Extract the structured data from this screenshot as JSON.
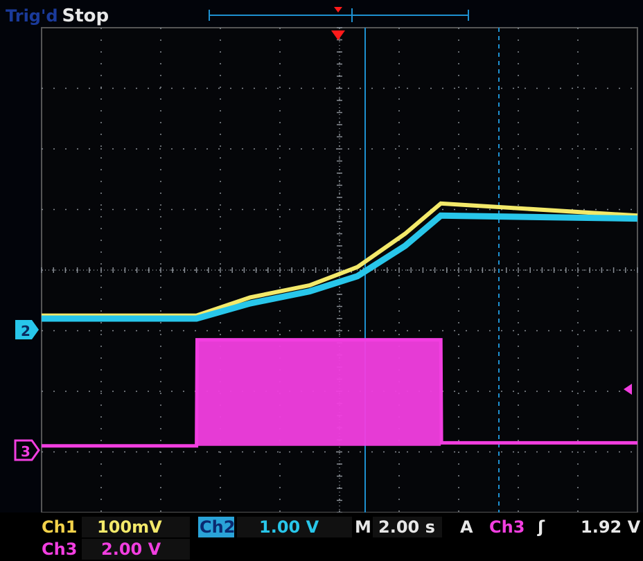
{
  "header": {
    "trigger_state": "Trig'd",
    "run_state": "Stop"
  },
  "markers": {
    "ch2": "2",
    "ch3": "3"
  },
  "status": {
    "ch1_label": "Ch1",
    "ch1_scale": "100mV",
    "ch2_label": "Ch2",
    "ch2_scale": "1.00 V",
    "time_label": "M",
    "time_scale": "2.00 s",
    "trig_mode": "A",
    "trig_source": "Ch3",
    "trig_slope": "ʃ",
    "trig_level": "1.92 V",
    "ch3_label": "Ch3",
    "ch3_scale": "2.00 V"
  },
  "colors": {
    "ch1": "#f3e96a",
    "ch2": "#28c6ea",
    "ch3": "#f23ee0",
    "grid": "#8a8f96",
    "cursor": "#1e90d0",
    "trigger": "#ff1a1a"
  },
  "chart_data": {
    "type": "line",
    "x_divisions": 10,
    "y_divisions": 8,
    "series": [
      {
        "name": "Ch1",
        "x": [
          0,
          2.6,
          3.5,
          4.5,
          5.3,
          6.1,
          6.7,
          10
        ],
        "y": [
          -0.75,
          -0.75,
          -0.45,
          -0.25,
          0.05,
          0.6,
          1.1,
          0.9
        ]
      },
      {
        "name": "Ch2",
        "x": [
          0,
          2.6,
          3.5,
          4.5,
          5.3,
          6.1,
          6.7,
          10
        ],
        "y": [
          -0.8,
          -0.8,
          -0.55,
          -0.35,
          -0.1,
          0.4,
          0.9,
          0.85
        ]
      },
      {
        "name": "Ch3",
        "x": [
          0,
          2.6,
          2.61,
          6.7,
          6.71,
          10
        ],
        "y": [
          -2.9,
          -2.9,
          -1.15,
          -1.15,
          -2.85,
          -2.85
        ]
      }
    ]
  }
}
